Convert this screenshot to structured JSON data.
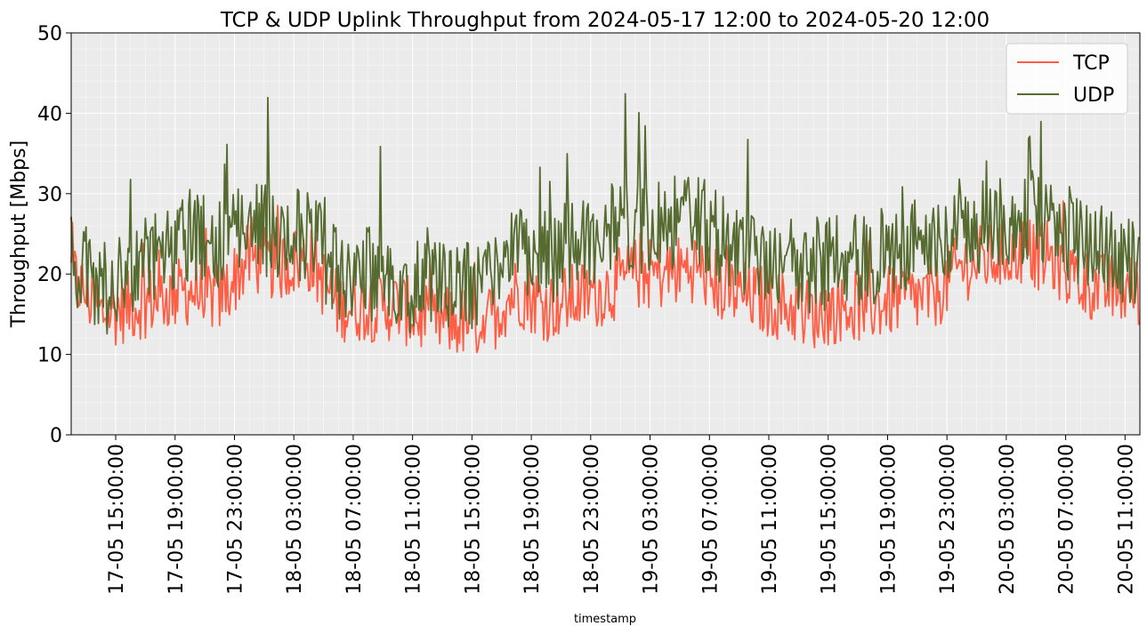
{
  "chart_data": {
    "type": "line",
    "title": "TCP & UDP Uplink Throughput from 2024-05-17 12:00 to 2024-05-20 12:00",
    "xlabel": "timestamp",
    "ylabel": "Throughput [Mbps]",
    "x_range": [
      "2024-05-17 12:00",
      "2024-05-20 12:00"
    ],
    "ylim": [
      0,
      50
    ],
    "yticks": [
      0,
      10,
      20,
      30,
      40,
      50
    ],
    "xtick_labels": [
      "17-05 15:00:00",
      "17-05 19:00:00",
      "17-05 23:00:00",
      "18-05 03:00:00",
      "18-05 07:00:00",
      "18-05 11:00:00",
      "18-05 15:00:00",
      "18-05 19:00:00",
      "18-05 23:00:00",
      "19-05 03:00:00",
      "19-05 07:00:00",
      "19-05 11:00:00",
      "19-05 15:00:00",
      "19-05 19:00:00",
      "19-05 23:00:00",
      "20-05 03:00:00",
      "20-05 07:00:00",
      "20-05 11:00:00"
    ],
    "grid": true,
    "legend_position": "top-right",
    "series": [
      {
        "name": "TCP",
        "color": "#ff5e45",
        "x": [
          "2024-05-17 12:00",
          "2024-05-17 14:00",
          "2024-05-17 16:00",
          "2024-05-17 18:00",
          "2024-05-17 20:00",
          "2024-05-17 22:00",
          "2024-05-18 00:00",
          "2024-05-18 02:00",
          "2024-05-18 04:00",
          "2024-05-18 06:00",
          "2024-05-18 08:00",
          "2024-05-18 10:00",
          "2024-05-18 12:00",
          "2024-05-18 14:00",
          "2024-05-18 16:00",
          "2024-05-18 18:00",
          "2024-05-18 20:00",
          "2024-05-18 22:00",
          "2024-05-19 00:00",
          "2024-05-19 02:00",
          "2024-05-19 04:00",
          "2024-05-19 06:00",
          "2024-05-19 08:00",
          "2024-05-19 10:00",
          "2024-05-19 12:00",
          "2024-05-19 14:00",
          "2024-05-19 16:00",
          "2024-05-19 18:00",
          "2024-05-19 20:00",
          "2024-05-19 22:00",
          "2024-05-20 00:00",
          "2024-05-20 02:00",
          "2024-05-20 04:00",
          "2024-05-20 06:00",
          "2024-05-20 08:00",
          "2024-05-20 10:00",
          "2024-05-20 12:00"
        ],
        "values": [
          20,
          15,
          16,
          17,
          18,
          17,
          22,
          21,
          22,
          16,
          16,
          16,
          14,
          14,
          14,
          18,
          16,
          17,
          18,
          20,
          20,
          21,
          18,
          17,
          16,
          15,
          16,
          16,
          17,
          17,
          21,
          22,
          23,
          22,
          19,
          18,
          18
        ]
      },
      {
        "name": "UDP",
        "color": "#556b2f",
        "x": [
          "2024-05-17 12:00",
          "2024-05-17 14:00",
          "2024-05-17 16:00",
          "2024-05-17 18:00",
          "2024-05-17 20:00",
          "2024-05-17 22:00",
          "2024-05-18 00:00",
          "2024-05-18 02:00",
          "2024-05-18 04:00",
          "2024-05-18 06:00",
          "2024-05-18 08:00",
          "2024-05-18 10:00",
          "2024-05-18 12:00",
          "2024-05-18 14:00",
          "2024-05-18 16:00",
          "2024-05-18 18:00",
          "2024-05-18 20:00",
          "2024-05-18 22:00",
          "2024-05-19 00:00",
          "2024-05-19 02:00",
          "2024-05-19 04:00",
          "2024-05-19 06:00",
          "2024-05-19 08:00",
          "2024-05-19 10:00",
          "2024-05-19 12:00",
          "2024-05-19 14:00",
          "2024-05-19 16:00",
          "2024-05-19 18:00",
          "2024-05-19 20:00",
          "2024-05-19 22:00",
          "2024-05-20 00:00",
          "2024-05-20 02:00",
          "2024-05-20 04:00",
          "2024-05-20 06:00",
          "2024-05-20 08:00",
          "2024-05-20 10:00",
          "2024-05-20 12:00"
        ],
        "values": [
          22,
          18,
          20,
          22,
          25,
          23,
          26,
          25,
          25,
          20,
          20,
          19,
          18,
          18,
          20,
          24,
          22,
          24,
          25,
          26,
          26,
          27,
          24,
          23,
          22,
          21,
          22,
          22,
          23,
          24,
          26,
          26,
          27,
          27,
          24,
          22,
          22
        ]
      }
    ]
  }
}
